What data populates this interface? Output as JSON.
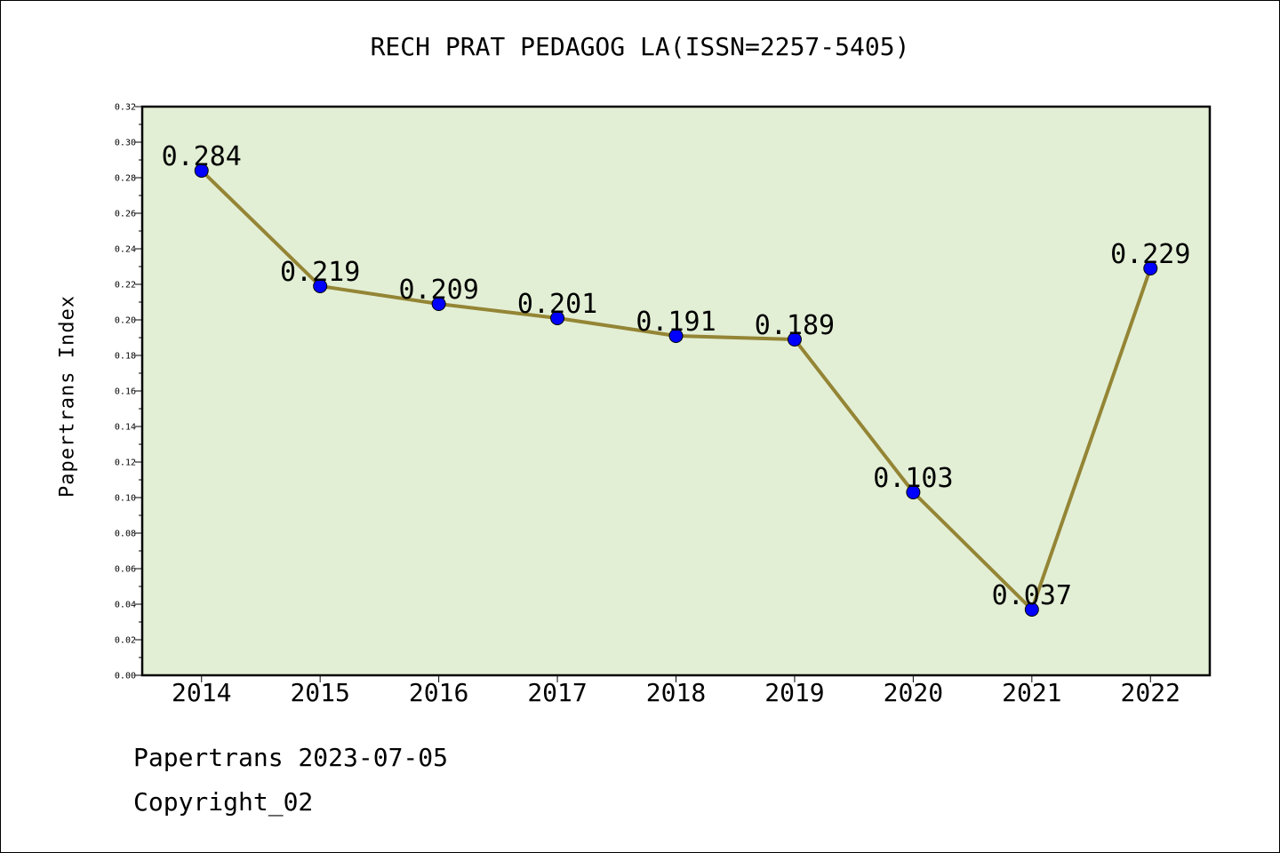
{
  "chart_data": {
    "type": "line",
    "title": "RECH PRAT PEDAGOG LA(ISSN=2257-5405)",
    "xlabel": "",
    "ylabel": "Papertrans Index",
    "categories": [
      "2014",
      "2015",
      "2016",
      "2017",
      "2018",
      "2019",
      "2020",
      "2021",
      "2022"
    ],
    "series": [
      {
        "values": [
          0.284,
          0.219,
          0.209,
          0.201,
          0.191,
          0.189,
          0.103,
          0.037,
          0.229
        ]
      }
    ],
    "data_labels": [
      "0.284",
      "0.219",
      "0.209",
      "0.201",
      "0.191",
      "0.189",
      "0.103",
      "0.037",
      "0.229"
    ],
    "ylim": [
      0,
      0.32
    ],
    "yticks": [
      "0.00",
      "0.02",
      "0.04",
      "0.06",
      "0.08",
      "0.10",
      "0.12",
      "0.14",
      "0.16",
      "0.18",
      "0.20",
      "0.22",
      "0.24",
      "0.26",
      "0.28",
      "0.30",
      "0.32"
    ],
    "grid": false,
    "colors": {
      "plot_background": "#e2efd5",
      "line": "#948535",
      "marker": "#0000ff"
    }
  },
  "footer": {
    "date_text": "Papertrans 2023-07-05",
    "copyright_text": "Copyright_02"
  }
}
